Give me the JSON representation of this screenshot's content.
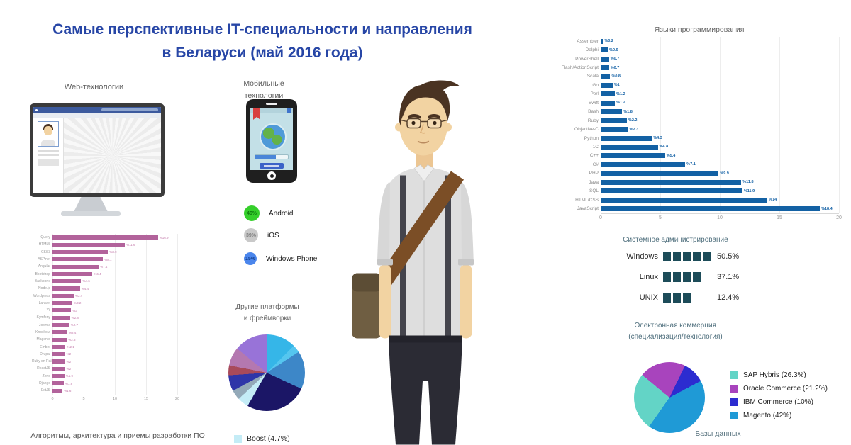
{
  "title": {
    "line1": "Самые перспективные IT-специальности и направления",
    "line2": "в Беларуси (май 2016 года)"
  },
  "sections": {
    "web_label": "Web-технологии",
    "mobile_label": "Мобильные технологии",
    "bottom_left_caption": "Алгоритмы, архитектура и приемы разработки ПО",
    "bottom_right_caption": "Базы данных"
  },
  "colors": {
    "title_blue": "#2746a6",
    "web_bar_pink": "#b2639b",
    "lang_bar_blue": "#1361a4",
    "sysadmin_square": "#1d4c59"
  },
  "chart_data": [
    {
      "id": "web_technologies",
      "type": "bar",
      "orientation": "horizontal",
      "color": "#b2639b",
      "value_prefix": "%",
      "value_color": "#c379aa",
      "xlim": [
        0,
        20
      ],
      "xticks": [
        0,
        5,
        10,
        15,
        20
      ],
      "categories": [
        "jQuery",
        "HTML5",
        "CSS3",
        "ASP.net",
        "Angular",
        "Bootstrap",
        "Backbone",
        "Node.js",
        "Wordpress",
        "Laravel",
        "Yii",
        "Symfony",
        "Joomla",
        "Knockout",
        "Magento",
        "Ember",
        "Drupal",
        "Ruby on Rails",
        "ReactJS",
        "Zend",
        "Django",
        "ExtJS"
      ],
      "values": [
        16.9,
        11.6,
        8.9,
        8.1,
        7.4,
        6.4,
        4.6,
        4.4,
        3.4,
        3.2,
        3,
        2.8,
        2.7,
        2.4,
        2.3,
        2.1,
        2,
        2,
        2,
        1.9,
        1.8,
        1.6
      ]
    },
    {
      "id": "programming_languages",
      "type": "bar",
      "orientation": "horizontal",
      "title": "Языки программирования",
      "color": "#1361a4",
      "value_prefix": "%",
      "value_color": "#1562a6",
      "xlim": [
        0,
        20
      ],
      "xticks": [
        0,
        5,
        10,
        15,
        20
      ],
      "categories": [
        "Assembler",
        "Delphi",
        "PowerShell",
        "Flash/ActionScript",
        "Scala",
        "Go",
        "Perl",
        "Swift",
        "Bash",
        "Ruby",
        "Objective-C",
        "Python",
        "1C",
        "C++",
        "C#",
        "PHP",
        "Java",
        "SQL",
        "HTML/CSS",
        "JavaScript"
      ],
      "values": [
        0.2,
        0.6,
        0.7,
        0.7,
        0.8,
        1,
        1.2,
        1.2,
        1.8,
        2.2,
        2.3,
        4.3,
        4.8,
        5.4,
        7.1,
        9.9,
        11.8,
        11.9,
        14,
        18.4
      ]
    },
    {
      "id": "system_administration",
      "type": "squares",
      "title": "Системное администрирование",
      "color": "#1d4c59",
      "items": [
        {
          "label": "Windows",
          "value": 50.5,
          "display": "50.5%",
          "squares": 5
        },
        {
          "label": "Linux",
          "value": 37.1,
          "display": "37.1%",
          "squares": 4
        },
        {
          "label": "UNIX",
          "value": 12.4,
          "display": "12.4%",
          "squares": 3
        }
      ]
    },
    {
      "id": "other_platforms",
      "type": "pie",
      "title_line1": "Другие платформы",
      "title_line2": "и фреймворки",
      "start_angle": 0,
      "slices": [
        {
          "label": "",
          "value": 12.5,
          "color": "#35b6e8"
        },
        {
          "label": "",
          "value": 3.3,
          "color": "#55c6ef"
        },
        {
          "label": "",
          "value": 16.1,
          "color": "#3d87c8"
        },
        {
          "label": "",
          "value": 26.4,
          "color": "#1b1666"
        },
        {
          "label": "Boost",
          "value": 4.7,
          "color": "#c4ecf6"
        },
        {
          "label": "",
          "value": 4.2,
          "color": "#93a9b8"
        },
        {
          "label": "",
          "value": 6.7,
          "color": "#2e35a8"
        },
        {
          "label": "",
          "value": 4.2,
          "color": "#a84a5a"
        },
        {
          "label": "",
          "value": 7.8,
          "color": "#b478b0"
        },
        {
          "label": "",
          "value": 14.1,
          "color": "#9873d8"
        }
      ],
      "legend": [
        {
          "label": "Boost (4.7%)",
          "color": "#c4ecf6"
        }
      ]
    },
    {
      "id": "ecommerce",
      "type": "pie",
      "title_line1": "Электронная коммерция",
      "title_line2": "(специализация/технология)",
      "start_angle": 215,
      "slices": [
        {
          "label": "SAP Hybris",
          "value": 26.3,
          "color": "#63d4c6"
        },
        {
          "label": "Oracle Commerce",
          "value": 21.2,
          "color": "#a844bd"
        },
        {
          "label": "IBM Commerce",
          "value": 10,
          "color": "#2c2cd0"
        },
        {
          "label": "Magento",
          "value": 42,
          "color": "#1f9ad6"
        }
      ],
      "legend": [
        {
          "label": "SAP Hybris (26.3%)",
          "color": "#63d4c6"
        },
        {
          "label": "Oracle Commerce (21.2%)",
          "color": "#a844bd"
        },
        {
          "label": "IBM Commerce (10%)",
          "color": "#2c2cd0"
        },
        {
          "label": "Magento (42%)",
          "color": "#1f9ad6"
        }
      ]
    },
    {
      "id": "mobile_os_share",
      "type": "stat-circles",
      "items": [
        {
          "label": "Android",
          "value": "46%",
          "color": "#35cf2b",
          "text_color": "#0f7a0f",
          "size": 22
        },
        {
          "label": "iOS",
          "value": "39%",
          "color": "#c9c9c9",
          "text_color": "#7d7d7d",
          "size": 20
        },
        {
          "label": "Windows Phone",
          "value": "15%",
          "color": "#4b86ec",
          "text_color": "#123f8f",
          "size": 18
        }
      ]
    }
  ]
}
